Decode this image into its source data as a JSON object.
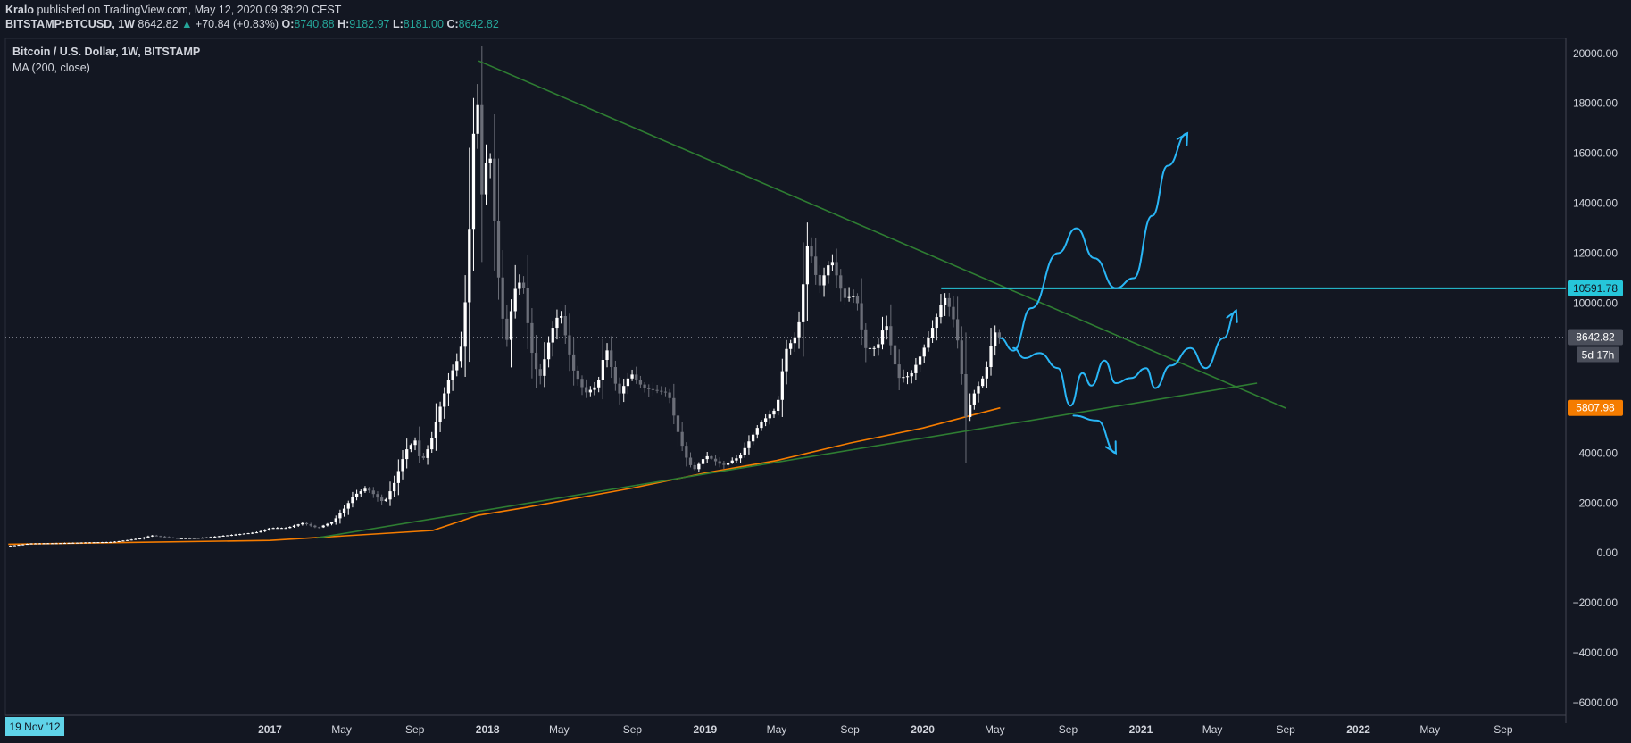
{
  "header": {
    "author": "Kralo",
    "published_text": "published on TradingView.com, May 12, 2020 09:38:20 CEST",
    "symbol": "BITSTAMP:BTCUSD, 1W",
    "last": "8642.82",
    "change": "+70.84 (+0.83%)",
    "o_label": "O:",
    "o_value": "8740.88",
    "h_label": "H:",
    "h_value": "9182.97",
    "l_label": "L:",
    "l_value": "8181.00",
    "c_label": "C:",
    "c_value": "8642.82",
    "up_arrow": "▲"
  },
  "legend": {
    "title": "Bitcoin / U.S. Dollar, 1W, BITSTAMP",
    "indicator": "MA (200, close)"
  },
  "colors": {
    "background": "#131722",
    "axis_text": "#d1d4dc",
    "up_candle": "#ffffff",
    "down_candle": "#6b6e78",
    "trendline": "#2e7d32",
    "ma_line": "#f57c00",
    "drawing": "#29b6f6",
    "last_price_tag": "#4a4e5a",
    "ma_tag": "#f57c00",
    "resistance_tag": "#26c6da",
    "positive": "#26a69a"
  },
  "chart_data": {
    "type": "candlestick",
    "title": "Bitcoin / U.S. Dollar, 1W, BITSTAMP",
    "ylim": [
      -6500,
      20600
    ],
    "y_ticks": [
      20000,
      18000,
      16000,
      14000,
      12000,
      10000,
      4000,
      2000,
      0,
      -2000,
      -4000,
      -6000
    ],
    "y_tick_labels": [
      "20000.00",
      "18000.00",
      "16000.00",
      "14000.00",
      "12000.00",
      "10000.00",
      "4000.00",
      "2000.00",
      "0.00",
      "−2000.00",
      "−4000.00",
      "−6000.00"
    ],
    "x_ticks": [
      "2017-01-01",
      "2017-05-01",
      "2017-09-01",
      "2018-01-01",
      "2018-05-01",
      "2018-09-01",
      "2019-01-01",
      "2019-05-01",
      "2019-09-01",
      "2020-01-01",
      "2020-05-01",
      "2020-09-01",
      "2021-01-01",
      "2021-05-01",
      "2021-09-01",
      "2022-01-01",
      "2022-05-01",
      "2022-09-01"
    ],
    "x_tick_labels": [
      "2017",
      "May",
      "Sep",
      "2018",
      "May",
      "Sep",
      "2019",
      "May",
      "Sep",
      "2020",
      "May",
      "Sep",
      "2021",
      "May",
      "Sep",
      "2022",
      "May",
      "Sep"
    ],
    "x_range": [
      "2015-10-15",
      "2022-12-15"
    ],
    "start_label": "19 Nov '12",
    "price_series": {
      "name": "BTCUSD",
      "points": [
        [
          "2015-10-20",
          270
        ],
        [
          "2015-12-01",
          380
        ],
        [
          "2016-01-15",
          390
        ],
        [
          "2016-03-01",
          420
        ],
        [
          "2016-04-15",
          440
        ],
        [
          "2016-06-01",
          580
        ],
        [
          "2016-06-20",
          700
        ],
        [
          "2016-08-01",
          580
        ],
        [
          "2016-09-15",
          610
        ],
        [
          "2016-11-01",
          720
        ],
        [
          "2016-12-15",
          830
        ],
        [
          "2017-01-05",
          1000
        ],
        [
          "2017-02-01",
          1000
        ],
        [
          "2017-03-01",
          1200
        ],
        [
          "2017-03-25",
          1000
        ],
        [
          "2017-04-20",
          1250
        ],
        [
          "2017-05-10",
          1800
        ],
        [
          "2017-05-25",
          2300
        ],
        [
          "2017-06-15",
          2600
        ],
        [
          "2017-07-15",
          2000
        ],
        [
          "2017-08-01",
          2800
        ],
        [
          "2017-08-20",
          4100
        ],
        [
          "2017-09-05",
          4500
        ],
        [
          "2017-09-15",
          3600
        ],
        [
          "2017-10-01",
          4400
        ],
        [
          "2017-10-15",
          5700
        ],
        [
          "2017-11-01",
          7000
        ],
        [
          "2017-11-20",
          8000
        ],
        [
          "2017-12-01",
          10800
        ],
        [
          "2017-12-17",
          19500
        ],
        [
          "2017-12-24",
          14000
        ],
        [
          "2018-01-07",
          16500
        ],
        [
          "2018-01-21",
          11500
        ],
        [
          "2018-02-04",
          8200
        ],
        [
          "2018-02-18",
          10500
        ],
        [
          "2018-03-04",
          11000
        ],
        [
          "2018-03-18",
          8200
        ],
        [
          "2018-04-01",
          6900
        ],
        [
          "2018-04-22",
          8900
        ],
        [
          "2018-05-06",
          9700
        ],
        [
          "2018-05-27",
          7400
        ],
        [
          "2018-06-17",
          6400
        ],
        [
          "2018-07-08",
          6700
        ],
        [
          "2018-07-22",
          8300
        ],
        [
          "2018-08-12",
          6300
        ],
        [
          "2018-09-02",
          7200
        ],
        [
          "2018-09-23",
          6600
        ],
        [
          "2018-10-14",
          6500
        ],
        [
          "2018-11-04",
          6400
        ],
        [
          "2018-11-18",
          5000
        ],
        [
          "2018-12-02",
          3900
        ],
        [
          "2018-12-16",
          3300
        ],
        [
          "2019-01-06",
          3900
        ],
        [
          "2019-02-03",
          3500
        ],
        [
          "2019-03-03",
          3850
        ],
        [
          "2019-04-07",
          5200
        ],
        [
          "2019-05-05",
          5800
        ],
        [
          "2019-05-19",
          8100
        ],
        [
          "2019-06-09",
          8800
        ],
        [
          "2019-06-26",
          12500
        ],
        [
          "2019-07-14",
          10600
        ],
        [
          "2019-08-04",
          11800
        ],
        [
          "2019-08-25",
          10200
        ],
        [
          "2019-09-15",
          10300
        ],
        [
          "2019-09-29",
          8200
        ],
        [
          "2019-10-20",
          8200
        ],
        [
          "2019-11-03",
          9300
        ],
        [
          "2019-11-24",
          7000
        ],
        [
          "2019-12-15",
          7100
        ],
        [
          "2020-01-05",
          8100
        ],
        [
          "2020-01-26",
          9300
        ],
        [
          "2020-02-09",
          10300
        ],
        [
          "2020-02-23",
          9600
        ],
        [
          "2020-03-08",
          7900
        ],
        [
          "2020-03-15",
          5300
        ],
        [
          "2020-03-29",
          6300
        ],
        [
          "2020-04-19",
          7200
        ],
        [
          "2020-05-03",
          8900
        ],
        [
          "2020-05-10",
          8642.82
        ]
      ]
    },
    "ma_series": {
      "name": "MA (200, close)",
      "points": [
        [
          "2015-10-20",
          350
        ],
        [
          "2017-01-01",
          500
        ],
        [
          "2017-10-01",
          900
        ],
        [
          "2017-12-15",
          1500
        ],
        [
          "2018-03-01",
          1800
        ],
        [
          "2018-09-01",
          2600
        ],
        [
          "2019-01-01",
          3200
        ],
        [
          "2019-05-01",
          3700
        ],
        [
          "2019-09-01",
          4400
        ],
        [
          "2020-01-01",
          5000
        ],
        [
          "2020-05-10",
          5807.98
        ]
      ]
    },
    "trendlines": [
      {
        "name": "descending-resistance",
        "from": [
          "2017-12-17",
          19700
        ],
        "to": [
          "2021-09-01",
          5800
        ]
      },
      {
        "name": "ascending-support",
        "from": [
          "2017-03-20",
          600
        ],
        "to": [
          "2021-07-15",
          6800
        ]
      }
    ],
    "horizontal_line": {
      "from": "2020-02-01",
      "value": 10591.78
    },
    "last_price": 8642.82,
    "ma_value": 5807.98,
    "resistance": 10591.78,
    "countdown": "5d 17h",
    "price_tags": [
      "10591.78",
      "8642.82",
      "5807.98"
    ],
    "scenario_paths": [
      [
        [
          "2020-05-10",
          8600
        ],
        [
          "2020-06-01",
          8100
        ],
        [
          "2020-07-01",
          9800
        ],
        [
          "2020-08-15",
          12000
        ],
        [
          "2020-09-15",
          13000
        ],
        [
          "2020-10-15",
          11800
        ],
        [
          "2020-11-20",
          10600
        ],
        [
          "2020-12-20",
          11000
        ],
        [
          "2021-01-20",
          13500
        ],
        [
          "2021-02-15",
          15500
        ],
        [
          "2021-03-20",
          16800
        ]
      ],
      [
        [
          "2020-06-01",
          8200
        ],
        [
          "2020-06-20",
          7800
        ],
        [
          "2020-07-15",
          8000
        ],
        [
          "2020-08-15",
          7400
        ],
        [
          "2020-09-05",
          5900
        ],
        [
          "2020-09-25",
          7200
        ],
        [
          "2020-10-10",
          6700
        ],
        [
          "2020-11-01",
          7700
        ],
        [
          "2020-11-20",
          6800
        ],
        [
          "2020-12-15",
          7000
        ],
        [
          "2021-01-10",
          7400
        ],
        [
          "2021-01-25",
          6600
        ],
        [
          "2021-02-20",
          7500
        ],
        [
          "2021-03-25",
          8200
        ],
        [
          "2021-04-20",
          7400
        ],
        [
          "2021-05-20",
          8600
        ],
        [
          "2021-06-10",
          9700
        ]
      ],
      [
        [
          "2020-09-10",
          5500
        ],
        [
          "2020-10-20",
          5300
        ],
        [
          "2020-11-20",
          4000
        ]
      ]
    ]
  }
}
